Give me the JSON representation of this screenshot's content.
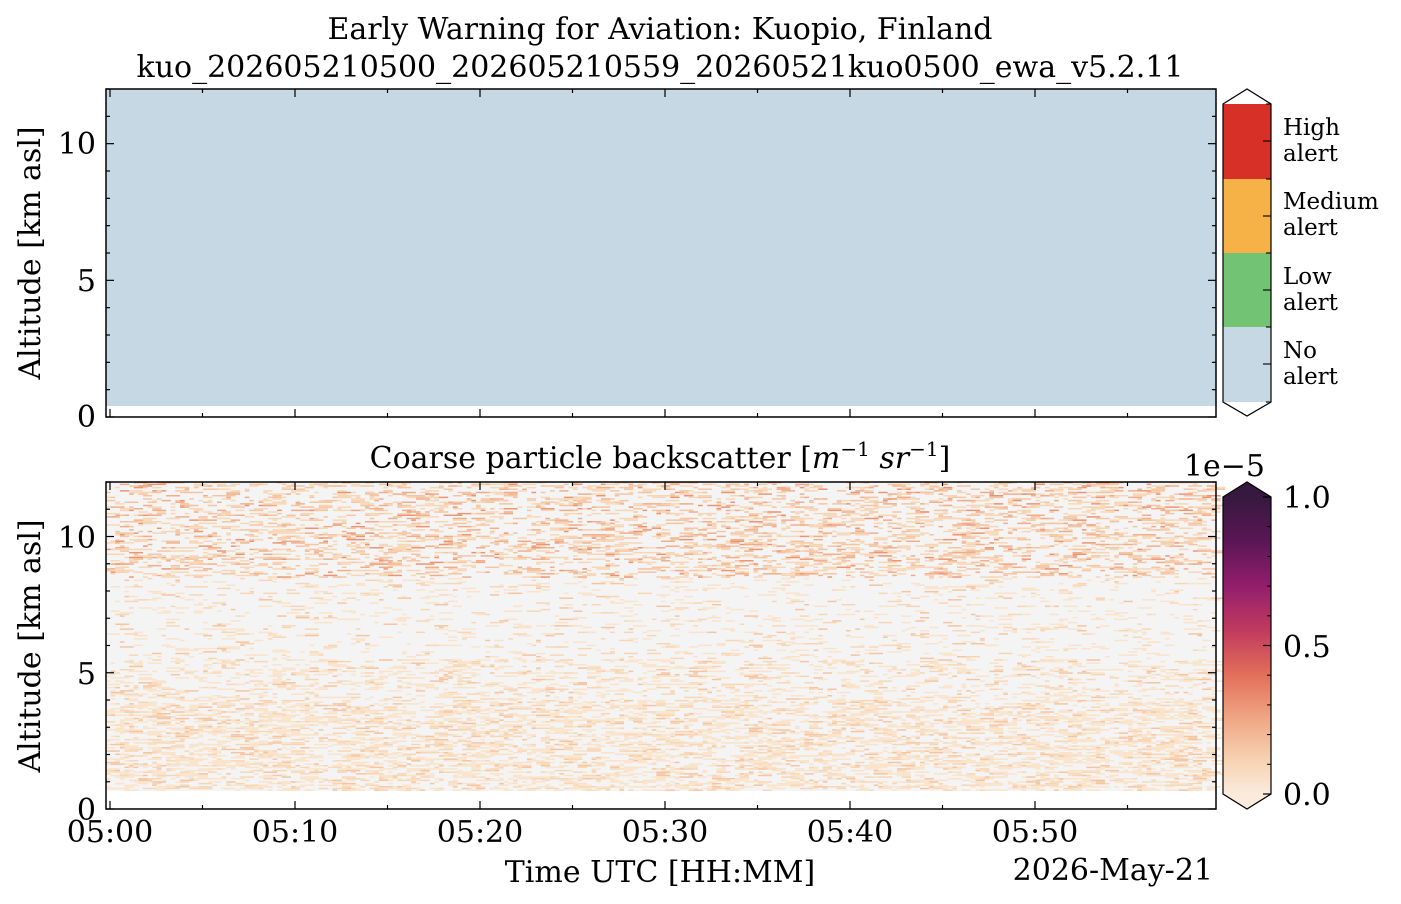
{
  "title_line1": "Early Warning for Aviation: Kuopio, Finland",
  "title_line2": "kuo_202605210500_202605210559_20260521kuo0500_ewa_v5.2.11",
  "date_label": "2026-May-21",
  "colors": {
    "no_alert": "#c5d8e3",
    "low_alert": "#72c374",
    "medium_alert": "#f6b147",
    "high_alert": "#d73027",
    "backscatter_background": "#f4f4f4"
  },
  "chart_data": [
    {
      "type": "heatmap",
      "title": "",
      "xlabel": "",
      "ylabel": "Altitude [km asl]",
      "xlim": [
        "05:00",
        "05:59"
      ],
      "ylim": [
        0,
        12
      ],
      "yticks": [
        "0",
        "5",
        "10"
      ],
      "categories": [
        "No alert",
        "Low alert",
        "Medium alert",
        "High alert"
      ],
      "colorbar_labels": [
        {
          "line1": "High",
          "line2": "alert"
        },
        {
          "line1": "Medium",
          "line2": "alert"
        },
        {
          "line1": "Low",
          "line2": "alert"
        },
        {
          "line1": "No",
          "line2": "alert"
        }
      ],
      "data_bottom_km": 0.4,
      "value_everywhere": "No alert"
    },
    {
      "type": "heatmap",
      "title_text": "Coarse particle backscatter [",
      "title_math_1": "m",
      "title_sup_1": "−1",
      "title_math_2": "sr",
      "title_sup_2": "−1",
      "title_close": "]",
      "xlabel": "Time UTC [HH:MM]",
      "ylabel": "Altitude [km asl]",
      "xticks": [
        "05:00",
        "05:10",
        "05:20",
        "05:30",
        "05:40",
        "05:50"
      ],
      "yticks": [
        "0",
        "5",
        "10"
      ],
      "ylim": [
        0,
        12
      ],
      "data_bottom_km": 0.65,
      "colorbar": {
        "multiplier": "1e−5",
        "ticks": [
          "0.0",
          "0.5",
          "1.0"
        ],
        "range": [
          0.0,
          1.0
        ],
        "colormap": "rocket_r"
      },
      "values_approx": "mostly near 0 with sparse weak returns (~0.02–0.25e-5), slightly denser below ~4 km and above ~9 km"
    }
  ]
}
